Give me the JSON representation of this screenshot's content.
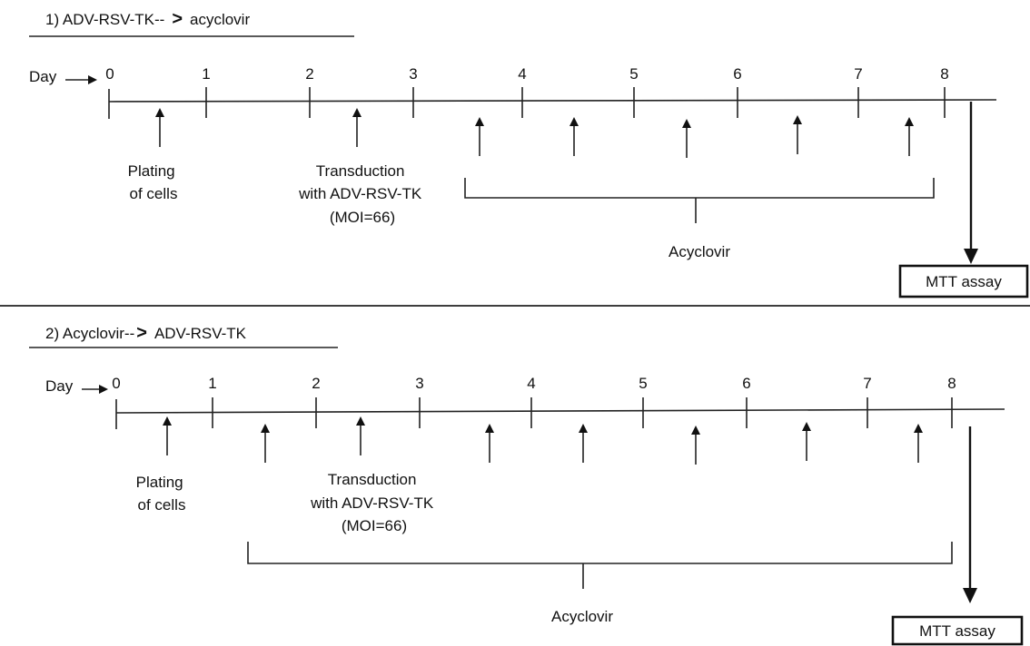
{
  "panels": [
    {
      "heading_num": "1) ",
      "heading_a": "ADV-RSV-TK--",
      "heading_arrow": ">",
      "heading_b": "acyclovir",
      "day_label": "Day",
      "tick_labels": [
        "0",
        "1",
        "2",
        "3",
        "4",
        "5",
        "6",
        "7",
        "8"
      ],
      "plating_lines": [
        "Plating",
        "of cells"
      ],
      "transduction_lines": [
        "Transduction",
        "with ADV-RSV-TK",
        "(MOI=66)"
      ],
      "acyclovir_label": "Acyclovir",
      "mtt_label": "MTT assay"
    },
    {
      "heading_num": "2) ",
      "heading_a": "Acyclovir--",
      "heading_arrow": ">",
      "heading_b": "ADV-RSV-TK",
      "day_label": "Day",
      "tick_labels": [
        "0",
        "1",
        "2",
        "3",
        "4",
        "5",
        "6",
        "7",
        "8"
      ],
      "plating_lines": [
        "Plating",
        "of cells"
      ],
      "transduction_lines": [
        "Transduction",
        "with ADV-RSV-TK",
        "(MOI=66)"
      ],
      "acyclovir_label": "Acyclovir",
      "mtt_label": "MTT assay"
    }
  ]
}
